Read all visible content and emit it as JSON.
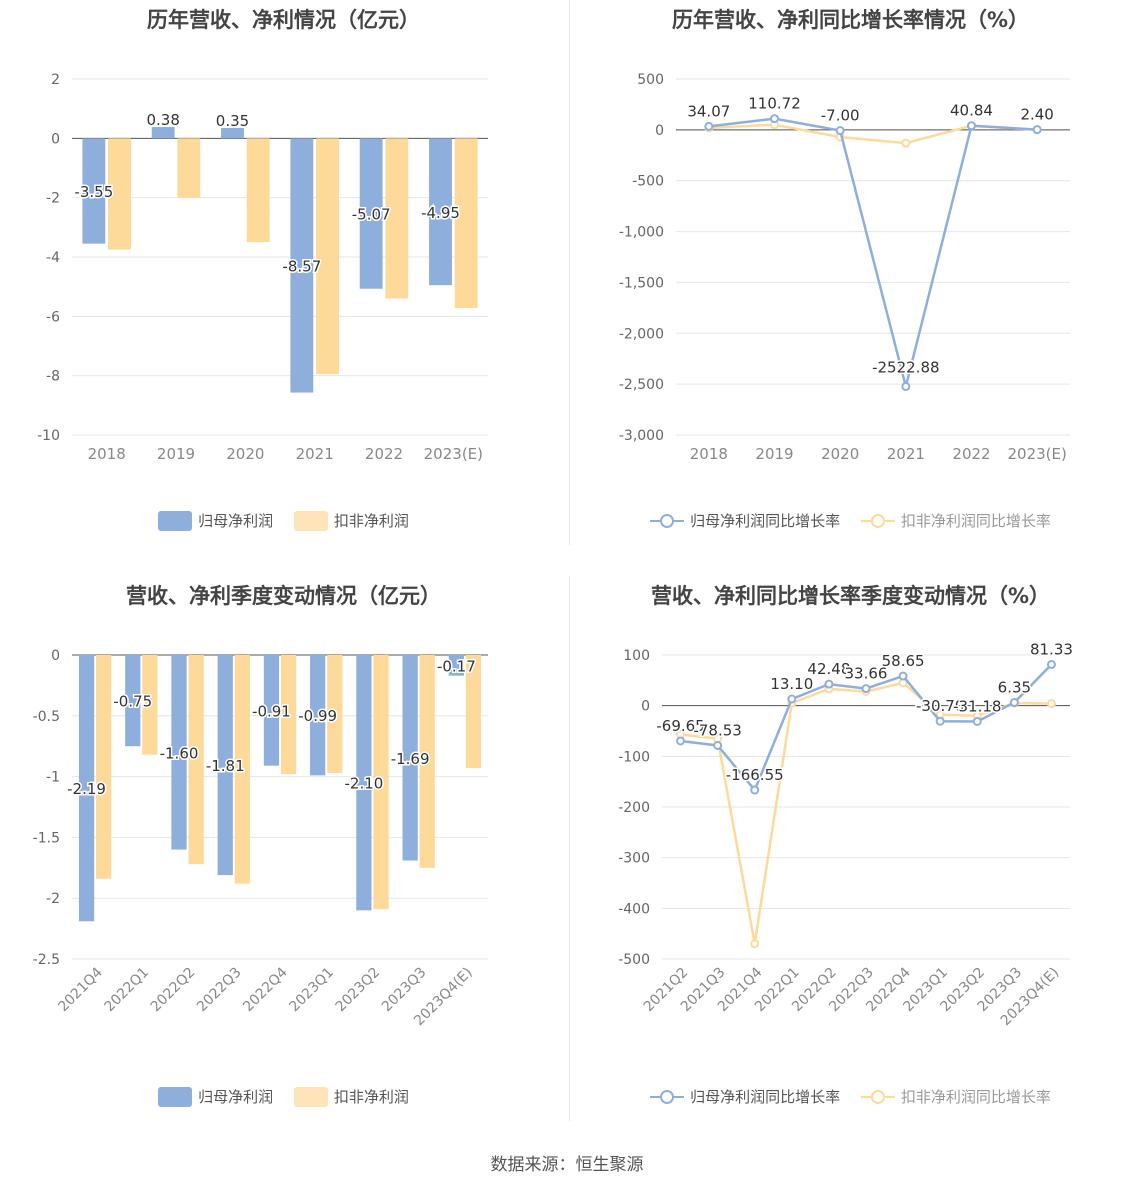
{
  "colors": {
    "series1": "#8eaedc",
    "series2": "#fdd99a",
    "grid": "#e3e6ee",
    "axis": "#555555",
    "text": "#444444"
  },
  "source": "数据来源：恒生聚源",
  "chart_data": [
    {
      "id": "annual-profit",
      "type": "bar",
      "title": "历年营收、净利情况（亿元）",
      "categories": [
        "2018",
        "2019",
        "2020",
        "2021",
        "2022",
        "2023(E)"
      ],
      "yticks": [
        "2",
        "0",
        "-2",
        "-4",
        "-6",
        "-8",
        "-10"
      ],
      "ylim": [
        -10,
        2
      ],
      "series": [
        {
          "name": "归母净利润",
          "values": [
            -3.55,
            0.38,
            0.35,
            -8.57,
            -5.07,
            -4.95
          ],
          "labels": [
            "-3.55",
            "0.38",
            "0.35",
            "-8.57",
            "-5.07",
            "-4.95"
          ]
        },
        {
          "name": "扣非净利润",
          "values": [
            -3.75,
            -2.0,
            -3.5,
            -7.95,
            -5.4,
            -5.72
          ]
        }
      ],
      "legend_position": "bottom"
    },
    {
      "id": "annual-growth",
      "type": "line",
      "title": "历年营收、净利同比增长率情况（%）",
      "categories": [
        "2018",
        "2019",
        "2020",
        "2021",
        "2022",
        "2023(E)"
      ],
      "yticks": [
        "500",
        "0",
        "-500",
        "-1,000",
        "-1,500",
        "-2,000",
        "-2,500",
        "-3,000"
      ],
      "ylim": [
        -3000,
        500
      ],
      "series": [
        {
          "name": "归母净利润同比增长率",
          "values": [
            34.07,
            110.72,
            -7.0,
            -2522.88,
            40.84,
            2.4
          ],
          "labels": [
            "34.07",
            "110.72",
            "-7.00",
            "-2522.88",
            "40.84",
            "2.40"
          ]
        },
        {
          "name": "扣非净利润同比增长率",
          "values": [
            20,
            50,
            -70,
            -130,
            40,
            0
          ]
        }
      ],
      "legend_position": "bottom"
    },
    {
      "id": "quarterly-profit",
      "type": "bar",
      "title": "营收、净利季度变动情况（亿元）",
      "categories": [
        "2021Q4",
        "2022Q1",
        "2022Q2",
        "2022Q3",
        "2022Q4",
        "2023Q1",
        "2023Q2",
        "2023Q3",
        "2023Q4(E)"
      ],
      "yticks": [
        "0",
        "-0.5",
        "-1",
        "-1.5",
        "-2",
        "-2.5"
      ],
      "ylim": [
        -2.5,
        0
      ],
      "series": [
        {
          "name": "归母净利润",
          "values": [
            -2.19,
            -0.75,
            -1.6,
            -1.81,
            -0.91,
            -0.99,
            -2.1,
            -1.69,
            -0.17
          ],
          "labels": [
            "-2.19",
            "-0.75",
            "-1.60",
            "-1.81",
            "-0.91",
            "-0.99",
            "-2.10",
            "-1.69",
            "-0.17"
          ]
        },
        {
          "name": "扣非净利润",
          "values": [
            -1.84,
            -0.82,
            -1.72,
            -1.88,
            -0.98,
            -0.97,
            -2.09,
            -1.75,
            -0.93
          ]
        }
      ],
      "legend_position": "bottom"
    },
    {
      "id": "quarterly-growth",
      "type": "line",
      "title": "营收、净利同比增长率季度变动情况（%）",
      "categories": [
        "2021Q2",
        "2021Q3",
        "2021Q4",
        "2022Q1",
        "2022Q2",
        "2022Q3",
        "2022Q4",
        "2023Q1",
        "2023Q2",
        "2023Q3",
        "2023Q4(E)"
      ],
      "yticks": [
        "100",
        "0",
        "-100",
        "-200",
        "-300",
        "-400",
        "-500"
      ],
      "ylim": [
        -500,
        100
      ],
      "series": [
        {
          "name": "归母净利润同比增长率",
          "values": [
            -69.65,
            -78.53,
            -166.55,
            13.1,
            42.48,
            33.66,
            58.65,
            -30.7,
            -31.18,
            6.35,
            81.33
          ],
          "labels": [
            "-69.65",
            "-78.53",
            "-166.55",
            "13.10",
            "42.48",
            "33.66",
            "58.65",
            "-30.70",
            "-31.18",
            "6.35",
            "81.33"
          ]
        },
        {
          "name": "扣非净利润同比增长率",
          "values": [
            -57,
            -65,
            -470,
            5,
            33,
            28,
            45,
            -18,
            -20,
            5,
            4
          ]
        }
      ],
      "legend_position": "bottom"
    }
  ]
}
